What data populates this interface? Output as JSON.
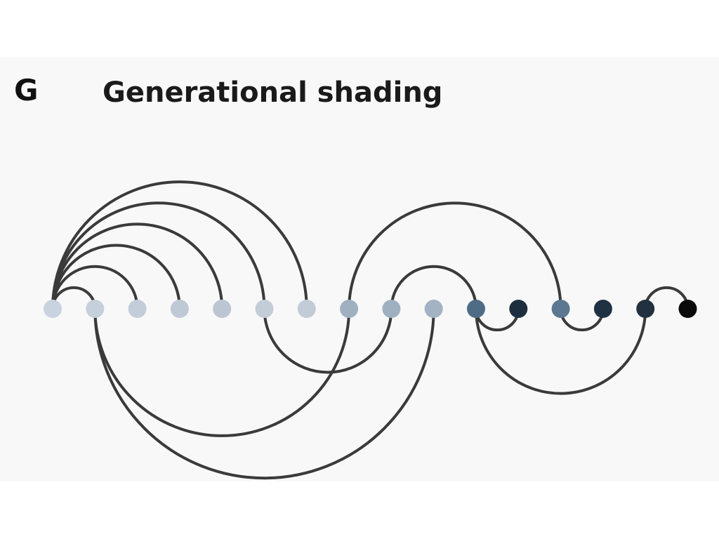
{
  "figure": {
    "panel_label": "G",
    "title": "Generational shading"
  },
  "arc_diagram": {
    "node_count": 16,
    "node_colors": [
      "#c9d3df",
      "#c6d0dc",
      "#c3cdd9",
      "#bfc9d5",
      "#bcc6d3",
      "#c3cdd8",
      "#c2ccd7",
      "#9fb0c1",
      "#9fb0c1",
      "#a3b3c3",
      "#4f6c86",
      "#1d2f3f",
      "#5b7890",
      "#1f3143",
      "#22313f",
      "#0a0a0a"
    ],
    "edge_color": "#3a3a3a",
    "edges": [
      {
        "source": 0,
        "target": 1,
        "side": "above"
      },
      {
        "source": 0,
        "target": 2,
        "side": "above"
      },
      {
        "source": 0,
        "target": 3,
        "side": "above"
      },
      {
        "source": 0,
        "target": 4,
        "side": "above"
      },
      {
        "source": 0,
        "target": 5,
        "side": "above"
      },
      {
        "source": 0,
        "target": 6,
        "side": "above"
      },
      {
        "source": 1,
        "target": 7,
        "side": "below"
      },
      {
        "source": 1,
        "target": 9,
        "side": "below"
      },
      {
        "source": 5,
        "target": 8,
        "side": "below"
      },
      {
        "source": 7,
        "target": 12,
        "side": "above"
      },
      {
        "source": 8,
        "target": 10,
        "side": "above"
      },
      {
        "source": 10,
        "target": 11,
        "side": "below"
      },
      {
        "source": 10,
        "target": 14,
        "side": "below"
      },
      {
        "source": 12,
        "target": 13,
        "side": "below"
      },
      {
        "source": 14,
        "target": 15,
        "side": "above"
      }
    ]
  }
}
